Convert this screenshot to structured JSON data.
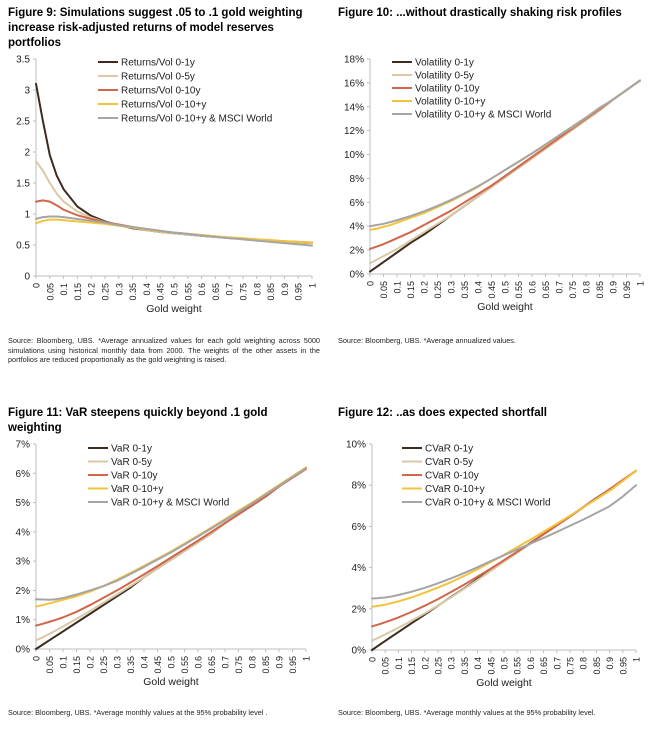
{
  "figures": [
    {
      "title": "Figure 9: Simulations suggest .05 to .1 gold weighting increase risk-adjusted returns of model reserves portfolios",
      "source": "Source: Bloomberg, UBS. *Average annualized values for each gold weighting across 5000 simulations using historical monthly data from 2000. The weights of the other assets in the portfolios are reduced proportionally as the gold weighting is raised."
    },
    {
      "title": "Figure 10: ...without drastically shaking risk profiles",
      "source": "Source: Bloomberg, UBS. *Average annualized values."
    },
    {
      "title": "Figure 11: VaR steepens quickly beyond .1 gold weighting",
      "source": "Source: Bloomberg, UBS. *Average monthly values at the 95% probability level ."
    },
    {
      "title": "Figure 12: ..as does expected shortfall",
      "source": "Source: Bloomberg, UBS. *Average monthly values at the 95% probability level."
    }
  ],
  "colors": {
    "s1": "#3d2b20",
    "s2": "#d9c9a6",
    "s3": "#d0664a",
    "s4": "#f2c33c",
    "s5": "#a5a5a5",
    "axis": "#bfbfbf"
  },
  "chart_data": [
    {
      "type": "line",
      "title": "Figure 9: Simulations suggest .05 to .1 gold weighting increase risk-adjusted returns of model reserves portfolios",
      "xlabel": "Gold weight",
      "ylabel": "",
      "ylim": [
        0,
        3.5
      ],
      "yticks": [
        "0",
        "0.5",
        "1",
        "1.5",
        "2",
        "2.5",
        "3",
        "3.5"
      ],
      "grid": false,
      "legend": "top-right",
      "x": [
        0,
        0.025,
        0.05,
        0.075,
        0.1,
        0.15,
        0.2,
        0.25,
        0.3,
        0.35,
        0.4,
        0.45,
        0.5,
        0.55,
        0.6,
        0.65,
        0.7,
        0.75,
        0.8,
        0.85,
        0.9,
        0.95,
        1
      ],
      "xticks": [
        "0",
        "0.05",
        "0.1",
        "0.15",
        "0.2",
        "0.25",
        "0.3",
        "0.35",
        "0.4",
        "0.45",
        "0.5",
        "0.55",
        "0.6",
        "0.65",
        "0.7",
        "0.75",
        "0.8",
        "0.85",
        "0.9",
        "0.95",
        "1"
      ],
      "series": [
        {
          "name": "Returns/Vol 0-1y",
          "values": [
            3.1,
            2.5,
            1.95,
            1.62,
            1.4,
            1.12,
            0.97,
            0.88,
            0.82,
            0.77,
            0.74,
            0.71,
            0.69,
            0.67,
            0.65,
            0.63,
            0.61,
            0.6,
            0.58,
            0.57,
            0.55,
            0.54,
            0.53
          ]
        },
        {
          "name": "Returns/Vol 0-5y",
          "values": [
            1.85,
            1.7,
            1.5,
            1.33,
            1.2,
            1.04,
            0.94,
            0.87,
            0.82,
            0.78,
            0.74,
            0.71,
            0.69,
            0.67,
            0.65,
            0.63,
            0.61,
            0.6,
            0.58,
            0.57,
            0.55,
            0.54,
            0.53
          ]
        },
        {
          "name": "Returns/Vol 0-10y",
          "values": [
            1.2,
            1.22,
            1.2,
            1.14,
            1.07,
            0.98,
            0.92,
            0.87,
            0.83,
            0.79,
            0.75,
            0.72,
            0.7,
            0.68,
            0.66,
            0.64,
            0.62,
            0.6,
            0.59,
            0.57,
            0.56,
            0.55,
            0.54
          ]
        },
        {
          "name": "Returns/Vol 0-10+y",
          "values": [
            0.85,
            0.89,
            0.91,
            0.91,
            0.9,
            0.88,
            0.86,
            0.84,
            0.81,
            0.78,
            0.75,
            0.72,
            0.7,
            0.68,
            0.66,
            0.64,
            0.62,
            0.61,
            0.59,
            0.58,
            0.56,
            0.55,
            0.54
          ]
        },
        {
          "name": "Returns/Vol 0-10+y & MSCI World",
          "values": [
            0.92,
            0.95,
            0.96,
            0.96,
            0.95,
            0.92,
            0.89,
            0.86,
            0.82,
            0.79,
            0.76,
            0.73,
            0.7,
            0.68,
            0.65,
            0.63,
            0.61,
            0.59,
            0.57,
            0.55,
            0.53,
            0.51,
            0.49
          ]
        }
      ]
    },
    {
      "type": "line",
      "title": "Figure 10: ...without drastically shaking risk profiles",
      "xlabel": "Gold weight",
      "ylabel": "",
      "ylim": [
        0,
        18
      ],
      "yticks": [
        "0%",
        "2%",
        "4%",
        "6%",
        "8%",
        "10%",
        "12%",
        "14%",
        "16%",
        "18%"
      ],
      "grid": false,
      "legend": "top-left",
      "x": [
        0,
        0.025,
        0.05,
        0.075,
        0.1,
        0.15,
        0.2,
        0.25,
        0.3,
        0.35,
        0.4,
        0.45,
        0.5,
        0.55,
        0.6,
        0.65,
        0.7,
        0.75,
        0.8,
        0.85,
        0.9,
        0.95,
        1
      ],
      "xticks": [
        "0",
        "0.05",
        "0.1",
        "0.15",
        "0.2",
        "0.25",
        "0.3",
        "0.35",
        "0.4",
        "0.45",
        "0.5",
        "0.55",
        "0.6",
        "0.65",
        "0.7",
        "0.75",
        "0.8",
        "0.85",
        "0.9",
        "0.95",
        "1"
      ],
      "series": [
        {
          "name": "Volatility 0-1y",
          "values": [
            0.2,
            0.6,
            1.0,
            1.4,
            1.8,
            2.6,
            3.3,
            4.1,
            4.9,
            5.7,
            6.5,
            7.3,
            8.1,
            8.9,
            9.7,
            10.5,
            11.3,
            12.1,
            12.9,
            13.7,
            14.6,
            15.4,
            16.2
          ]
        },
        {
          "name": "Volatility 0-5y",
          "values": [
            0.9,
            1.2,
            1.5,
            1.8,
            2.1,
            2.8,
            3.5,
            4.2,
            4.9,
            5.7,
            6.5,
            7.3,
            8.1,
            8.9,
            9.7,
            10.5,
            11.3,
            12.1,
            12.9,
            13.7,
            14.6,
            15.4,
            16.2
          ]
        },
        {
          "name": "Volatility 0-10y",
          "values": [
            2.1,
            2.3,
            2.5,
            2.75,
            3.0,
            3.5,
            4.1,
            4.7,
            5.3,
            6.0,
            6.7,
            7.4,
            8.2,
            9.0,
            9.8,
            10.6,
            11.4,
            12.2,
            13.0,
            13.8,
            14.6,
            15.4,
            16.2
          ]
        },
        {
          "name": "Volatility  0-10+y",
          "values": [
            3.7,
            3.8,
            3.95,
            4.1,
            4.3,
            4.7,
            5.1,
            5.6,
            6.1,
            6.7,
            7.3,
            8.0,
            8.7,
            9.4,
            10.1,
            10.8,
            11.6,
            12.3,
            13.1,
            13.9,
            14.6,
            15.4,
            16.2
          ]
        },
        {
          "name": "Volatility  0-10+y & MSCI World",
          "values": [
            4.0,
            4.1,
            4.2,
            4.35,
            4.5,
            4.85,
            5.25,
            5.7,
            6.2,
            6.75,
            7.35,
            8.0,
            8.7,
            9.4,
            10.1,
            10.85,
            11.6,
            12.35,
            13.1,
            13.9,
            14.6,
            15.4,
            16.2
          ]
        }
      ]
    },
    {
      "type": "line",
      "title": "Figure 11: VaR steepens quickly beyond .1 gold weighting",
      "xlabel": "Gold weight",
      "ylabel": "",
      "ylim": [
        0,
        7
      ],
      "yticks": [
        "0%",
        "1%",
        "2%",
        "3%",
        "4%",
        "5%",
        "6%",
        "7%"
      ],
      "grid": false,
      "legend": "top-left",
      "x": [
        0,
        0.025,
        0.05,
        0.075,
        0.1,
        0.15,
        0.2,
        0.25,
        0.3,
        0.35,
        0.4,
        0.45,
        0.5,
        0.55,
        0.6,
        0.65,
        0.7,
        0.75,
        0.8,
        0.85,
        0.9,
        0.95,
        1
      ],
      "xticks": [
        "0",
        "0.05",
        "0.1",
        "0.15",
        "0.2",
        "0.25",
        "0.3",
        "0.35",
        "0.4",
        "0.45",
        "0.5",
        "0.55",
        "0.6",
        "0.65",
        "0.7",
        "0.75",
        "0.8",
        "0.85",
        "0.9",
        "0.95",
        "1"
      ],
      "series": [
        {
          "name": "VaR 0-1y",
          "values": [
            0.0,
            0.15,
            0.3,
            0.45,
            0.6,
            0.9,
            1.2,
            1.5,
            1.8,
            2.1,
            2.45,
            2.75,
            3.05,
            3.35,
            3.65,
            3.95,
            4.3,
            4.6,
            4.9,
            5.2,
            5.55,
            5.85,
            6.15
          ]
        },
        {
          "name": "VaR 0-5y",
          "values": [
            0.3,
            0.4,
            0.52,
            0.64,
            0.77,
            1.03,
            1.3,
            1.58,
            1.86,
            2.15,
            2.45,
            2.75,
            3.05,
            3.35,
            3.65,
            3.95,
            4.3,
            4.6,
            4.9,
            5.2,
            5.55,
            5.85,
            6.15
          ]
        },
        {
          "name": "VaR 0-10y",
          "values": [
            0.8,
            0.86,
            0.93,
            1.0,
            1.08,
            1.27,
            1.5,
            1.75,
            2.0,
            2.27,
            2.55,
            2.83,
            3.12,
            3.41,
            3.7,
            4.0,
            4.3,
            4.6,
            4.9,
            5.2,
            5.55,
            5.85,
            6.15
          ]
        },
        {
          "name": "VaR  0-10+y",
          "values": [
            1.45,
            1.5,
            1.56,
            1.62,
            1.68,
            1.8,
            1.96,
            2.15,
            2.37,
            2.6,
            2.84,
            3.08,
            3.33,
            3.6,
            3.87,
            4.15,
            4.43,
            4.72,
            5.0,
            5.3,
            5.6,
            5.9,
            6.2
          ]
        },
        {
          "name": "VaR  0-10+y & MSCI World",
          "values": [
            1.7,
            1.69,
            1.68,
            1.7,
            1.74,
            1.86,
            2.0,
            2.15,
            2.33,
            2.56,
            2.8,
            3.05,
            3.3,
            3.57,
            3.84,
            4.12,
            4.4,
            4.68,
            4.97,
            5.27,
            5.57,
            5.87,
            6.17
          ]
        }
      ]
    },
    {
      "type": "line",
      "title": "Figure 12: ..as does expected shortfall",
      "xlabel": "Gold weight",
      "ylabel": "",
      "ylim": [
        0,
        10
      ],
      "yticks": [
        "0%",
        "2%",
        "4%",
        "6%",
        "8%",
        "10%"
      ],
      "grid": false,
      "legend": "top-left",
      "x": [
        0,
        0.025,
        0.05,
        0.075,
        0.1,
        0.15,
        0.2,
        0.25,
        0.3,
        0.35,
        0.4,
        0.45,
        0.5,
        0.55,
        0.6,
        0.65,
        0.7,
        0.75,
        0.8,
        0.85,
        0.9,
        0.95,
        1
      ],
      "xticks": [
        "0",
        "0.05",
        "0.1",
        "0.15",
        "0.2",
        "0.25",
        "0.3",
        "0.35",
        "0.4",
        "0.45",
        "0.5",
        "0.55",
        "0.6",
        "0.65",
        "0.7",
        "0.75",
        "0.8",
        "0.85",
        "0.9",
        "0.95",
        "1"
      ],
      "series": [
        {
          "name": "CVaR 0-1y",
          "values": [
            0.0,
            0.22,
            0.44,
            0.66,
            0.87,
            1.3,
            1.72,
            2.15,
            2.58,
            3.0,
            3.45,
            3.88,
            4.3,
            4.75,
            5.2,
            5.62,
            6.05,
            6.5,
            6.93,
            7.38,
            7.8,
            8.25,
            8.7
          ]
        },
        {
          "name": "CVaR 0-5y",
          "values": [
            0.45,
            0.6,
            0.76,
            0.92,
            1.08,
            1.42,
            1.78,
            2.16,
            2.56,
            2.98,
            3.4,
            3.84,
            4.28,
            4.72,
            5.16,
            5.6,
            6.05,
            6.48,
            6.92,
            7.36,
            7.8,
            8.25,
            8.7
          ]
        },
        {
          "name": "CVaR 0-10y",
          "values": [
            1.15,
            1.24,
            1.35,
            1.46,
            1.58,
            1.85,
            2.15,
            2.47,
            2.82,
            3.18,
            3.56,
            3.95,
            4.36,
            4.77,
            5.19,
            5.62,
            6.05,
            6.48,
            6.92,
            7.36,
            7.8,
            8.25,
            8.7
          ]
        },
        {
          "name": "CVaR  0-10+y",
          "values": [
            2.1,
            2.15,
            2.2,
            2.28,
            2.36,
            2.55,
            2.78,
            3.03,
            3.3,
            3.6,
            3.92,
            4.27,
            4.62,
            4.99,
            5.36,
            5.74,
            6.13,
            6.52,
            6.92,
            7.32,
            7.73,
            8.2,
            8.7
          ]
        },
        {
          "name": "CVaR  0-10+y & MSCI World",
          "values": [
            2.5,
            2.52,
            2.55,
            2.6,
            2.67,
            2.83,
            3.02,
            3.24,
            3.48,
            3.74,
            4.02,
            4.32,
            4.6,
            4.88,
            5.16,
            5.44,
            5.73,
            6.03,
            6.33,
            6.65,
            6.98,
            7.45,
            8.0
          ]
        }
      ]
    }
  ]
}
